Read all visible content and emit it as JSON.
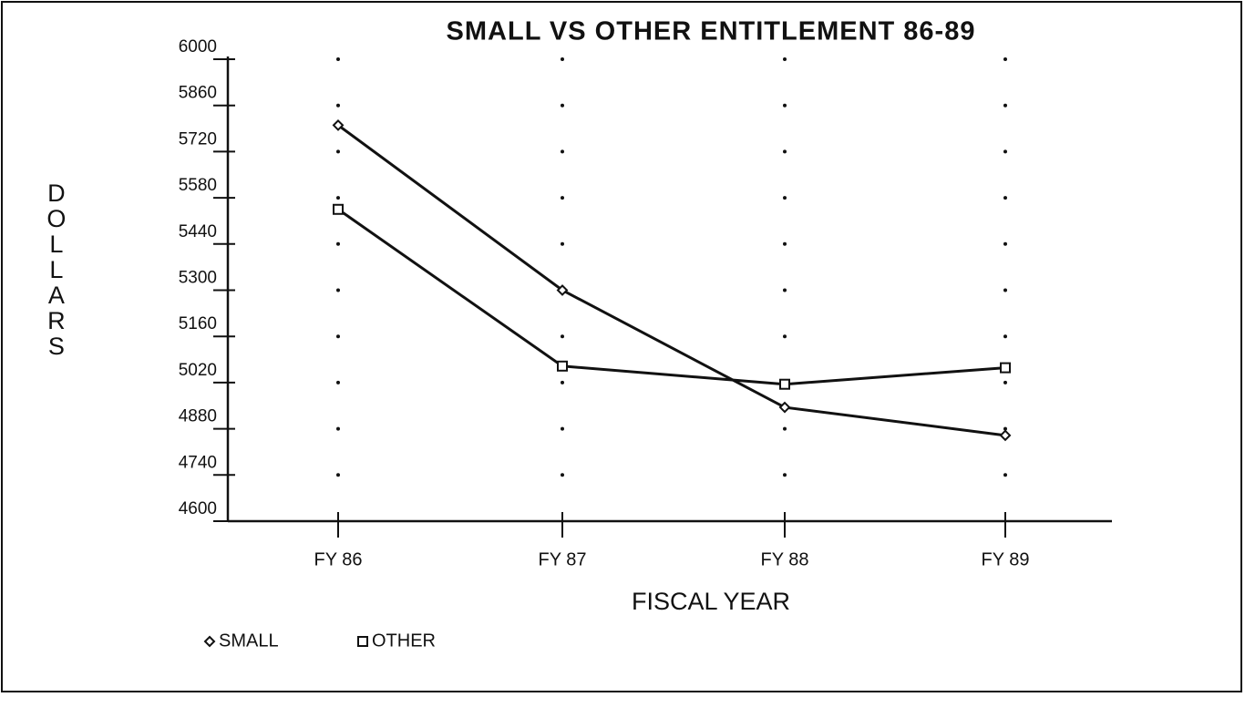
{
  "chart_data": {
    "type": "line",
    "title": "SMALL VS OTHER ENTITLEMENT 86-89",
    "x_label": "FISCAL YEAR",
    "y_label": "DOLLARS",
    "categories": [
      "FY 86",
      "FY 87",
      "FY 88",
      "FY 89"
    ],
    "series": [
      {
        "name": "SMALL",
        "color": "#111111",
        "marker": "diamond",
        "values": [
          5800,
          5300,
          4945,
          4860
        ]
      },
      {
        "name": "OTHER",
        "color": "#111111",
        "marker": "square",
        "values": [
          5545,
          5070,
          5015,
          5065
        ]
      }
    ],
    "ylim": [
      4600,
      6000
    ],
    "yticks": [
      4600,
      4740,
      4880,
      5020,
      5160,
      5300,
      5440,
      5580,
      5720,
      5860,
      6000
    ],
    "grid": true,
    "legend": "bottom-left"
  }
}
